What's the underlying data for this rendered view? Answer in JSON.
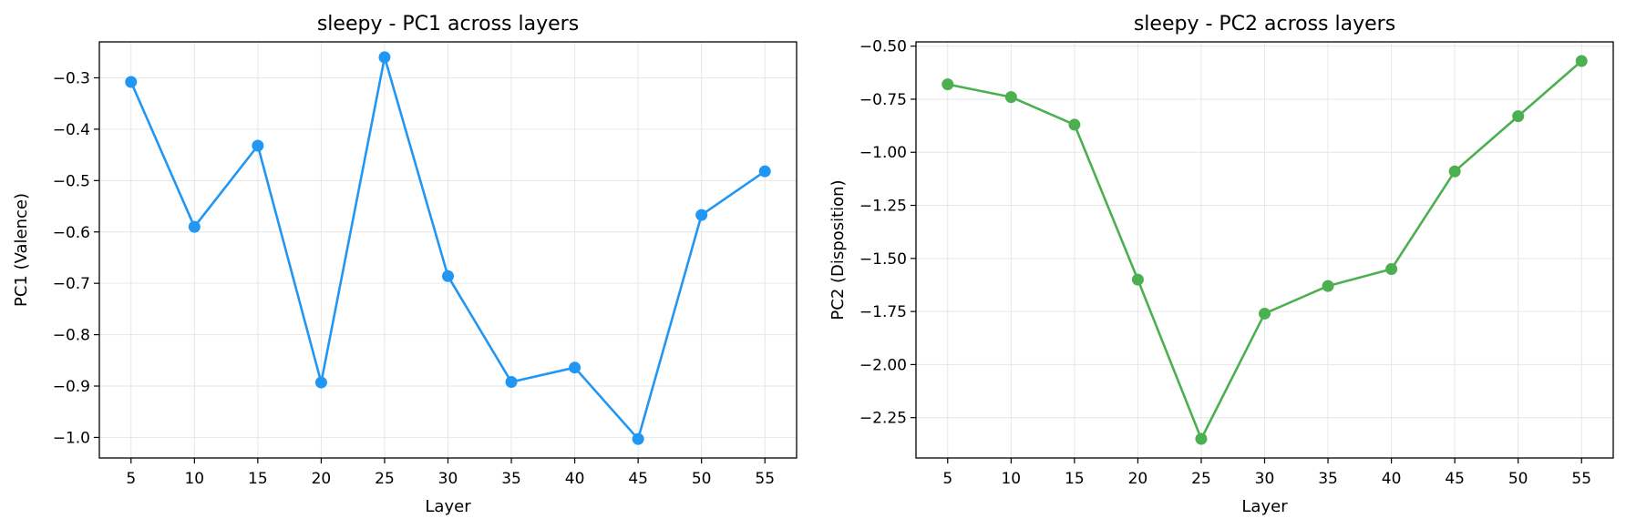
{
  "chart_data": [
    {
      "type": "line",
      "title": "sleepy - PC1 across layers",
      "xlabel": "Layer",
      "ylabel": "PC1 (Valence)",
      "x": [
        5,
        10,
        15,
        20,
        25,
        30,
        35,
        40,
        45,
        50,
        55
      ],
      "series": [
        {
          "values": [
            -0.308,
            -0.59,
            -0.432,
            -0.893,
            -0.26,
            -0.686,
            -0.892,
            -0.864,
            -1.003,
            -0.567,
            -0.482
          ]
        }
      ],
      "xlim": [
        2.5,
        57.5
      ],
      "ylim": [
        -1.04,
        -0.23
      ],
      "xticks": [
        5,
        10,
        15,
        20,
        25,
        30,
        35,
        40,
        45,
        50,
        55
      ],
      "yticks": [
        -1.0,
        -0.9,
        -0.8,
        -0.7,
        -0.6,
        -0.5,
        -0.4,
        -0.3
      ],
      "ytick_labels": [
        "−1.0",
        "−0.9",
        "−0.8",
        "−0.7",
        "−0.6",
        "−0.5",
        "−0.4",
        "−0.3"
      ],
      "grid": true,
      "color": "#2196F3"
    },
    {
      "type": "line",
      "title": "sleepy - PC2 across layers",
      "xlabel": "Layer",
      "ylabel": "PC2 (Disposition)",
      "x": [
        5,
        10,
        15,
        20,
        25,
        30,
        35,
        40,
        45,
        50,
        55
      ],
      "series": [
        {
          "values": [
            -0.68,
            -0.74,
            -0.87,
            -1.6,
            -2.35,
            -1.76,
            -1.63,
            -1.55,
            -1.09,
            -0.83,
            -0.57
          ]
        }
      ],
      "xlim": [
        2.5,
        57.5
      ],
      "ylim": [
        -2.44,
        -0.48
      ],
      "xticks": [
        5,
        10,
        15,
        20,
        25,
        30,
        35,
        40,
        45,
        50,
        55
      ],
      "yticks": [
        -2.25,
        -2.0,
        -1.75,
        -1.5,
        -1.25,
        -1.0,
        -0.75,
        -0.5
      ],
      "ytick_labels": [
        "−2.25",
        "−2.00",
        "−1.75",
        "−1.50",
        "−1.25",
        "−1.00",
        "−0.75",
        "−0.50"
      ],
      "grid": true,
      "color": "#4CAF50"
    }
  ]
}
